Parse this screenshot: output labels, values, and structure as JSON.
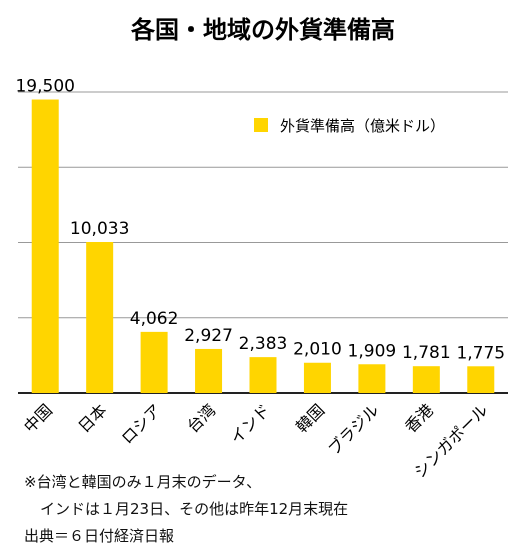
{
  "chart_data": {
    "type": "bar",
    "title": "各国・地域の外貨準備高",
    "categories": [
      "中国",
      "日本",
      "ロシア",
      "台湾",
      "インド",
      "韓国",
      "ブラジル",
      "香港",
      "シンガポール"
    ],
    "series": [
      {
        "name": "外貨準備高（億米ドル）",
        "values": [
          19500,
          10033,
          4062,
          2927,
          2383,
          2010,
          1909,
          1781,
          1775
        ],
        "labels": [
          "19,500",
          "10,033",
          "4,062",
          "2,927",
          "2,383",
          "2,010",
          "1,909",
          "1,781",
          "1,775"
        ]
      }
    ],
    "ylim": [
      0,
      20000
    ],
    "gridlines": [
      5000,
      10000,
      15000,
      20000
    ],
    "xlabel": "",
    "ylabel": "",
    "legend_position": "top-right",
    "colors": {
      "bar": "#FFD500",
      "grid": "#999999"
    }
  },
  "notes": {
    "line1": "※台湾と韓国のみ１月末のデータ、",
    "line2": "インドは１月23日、その他は昨年12月末現在",
    "source": "出典＝６日付経済日報"
  }
}
